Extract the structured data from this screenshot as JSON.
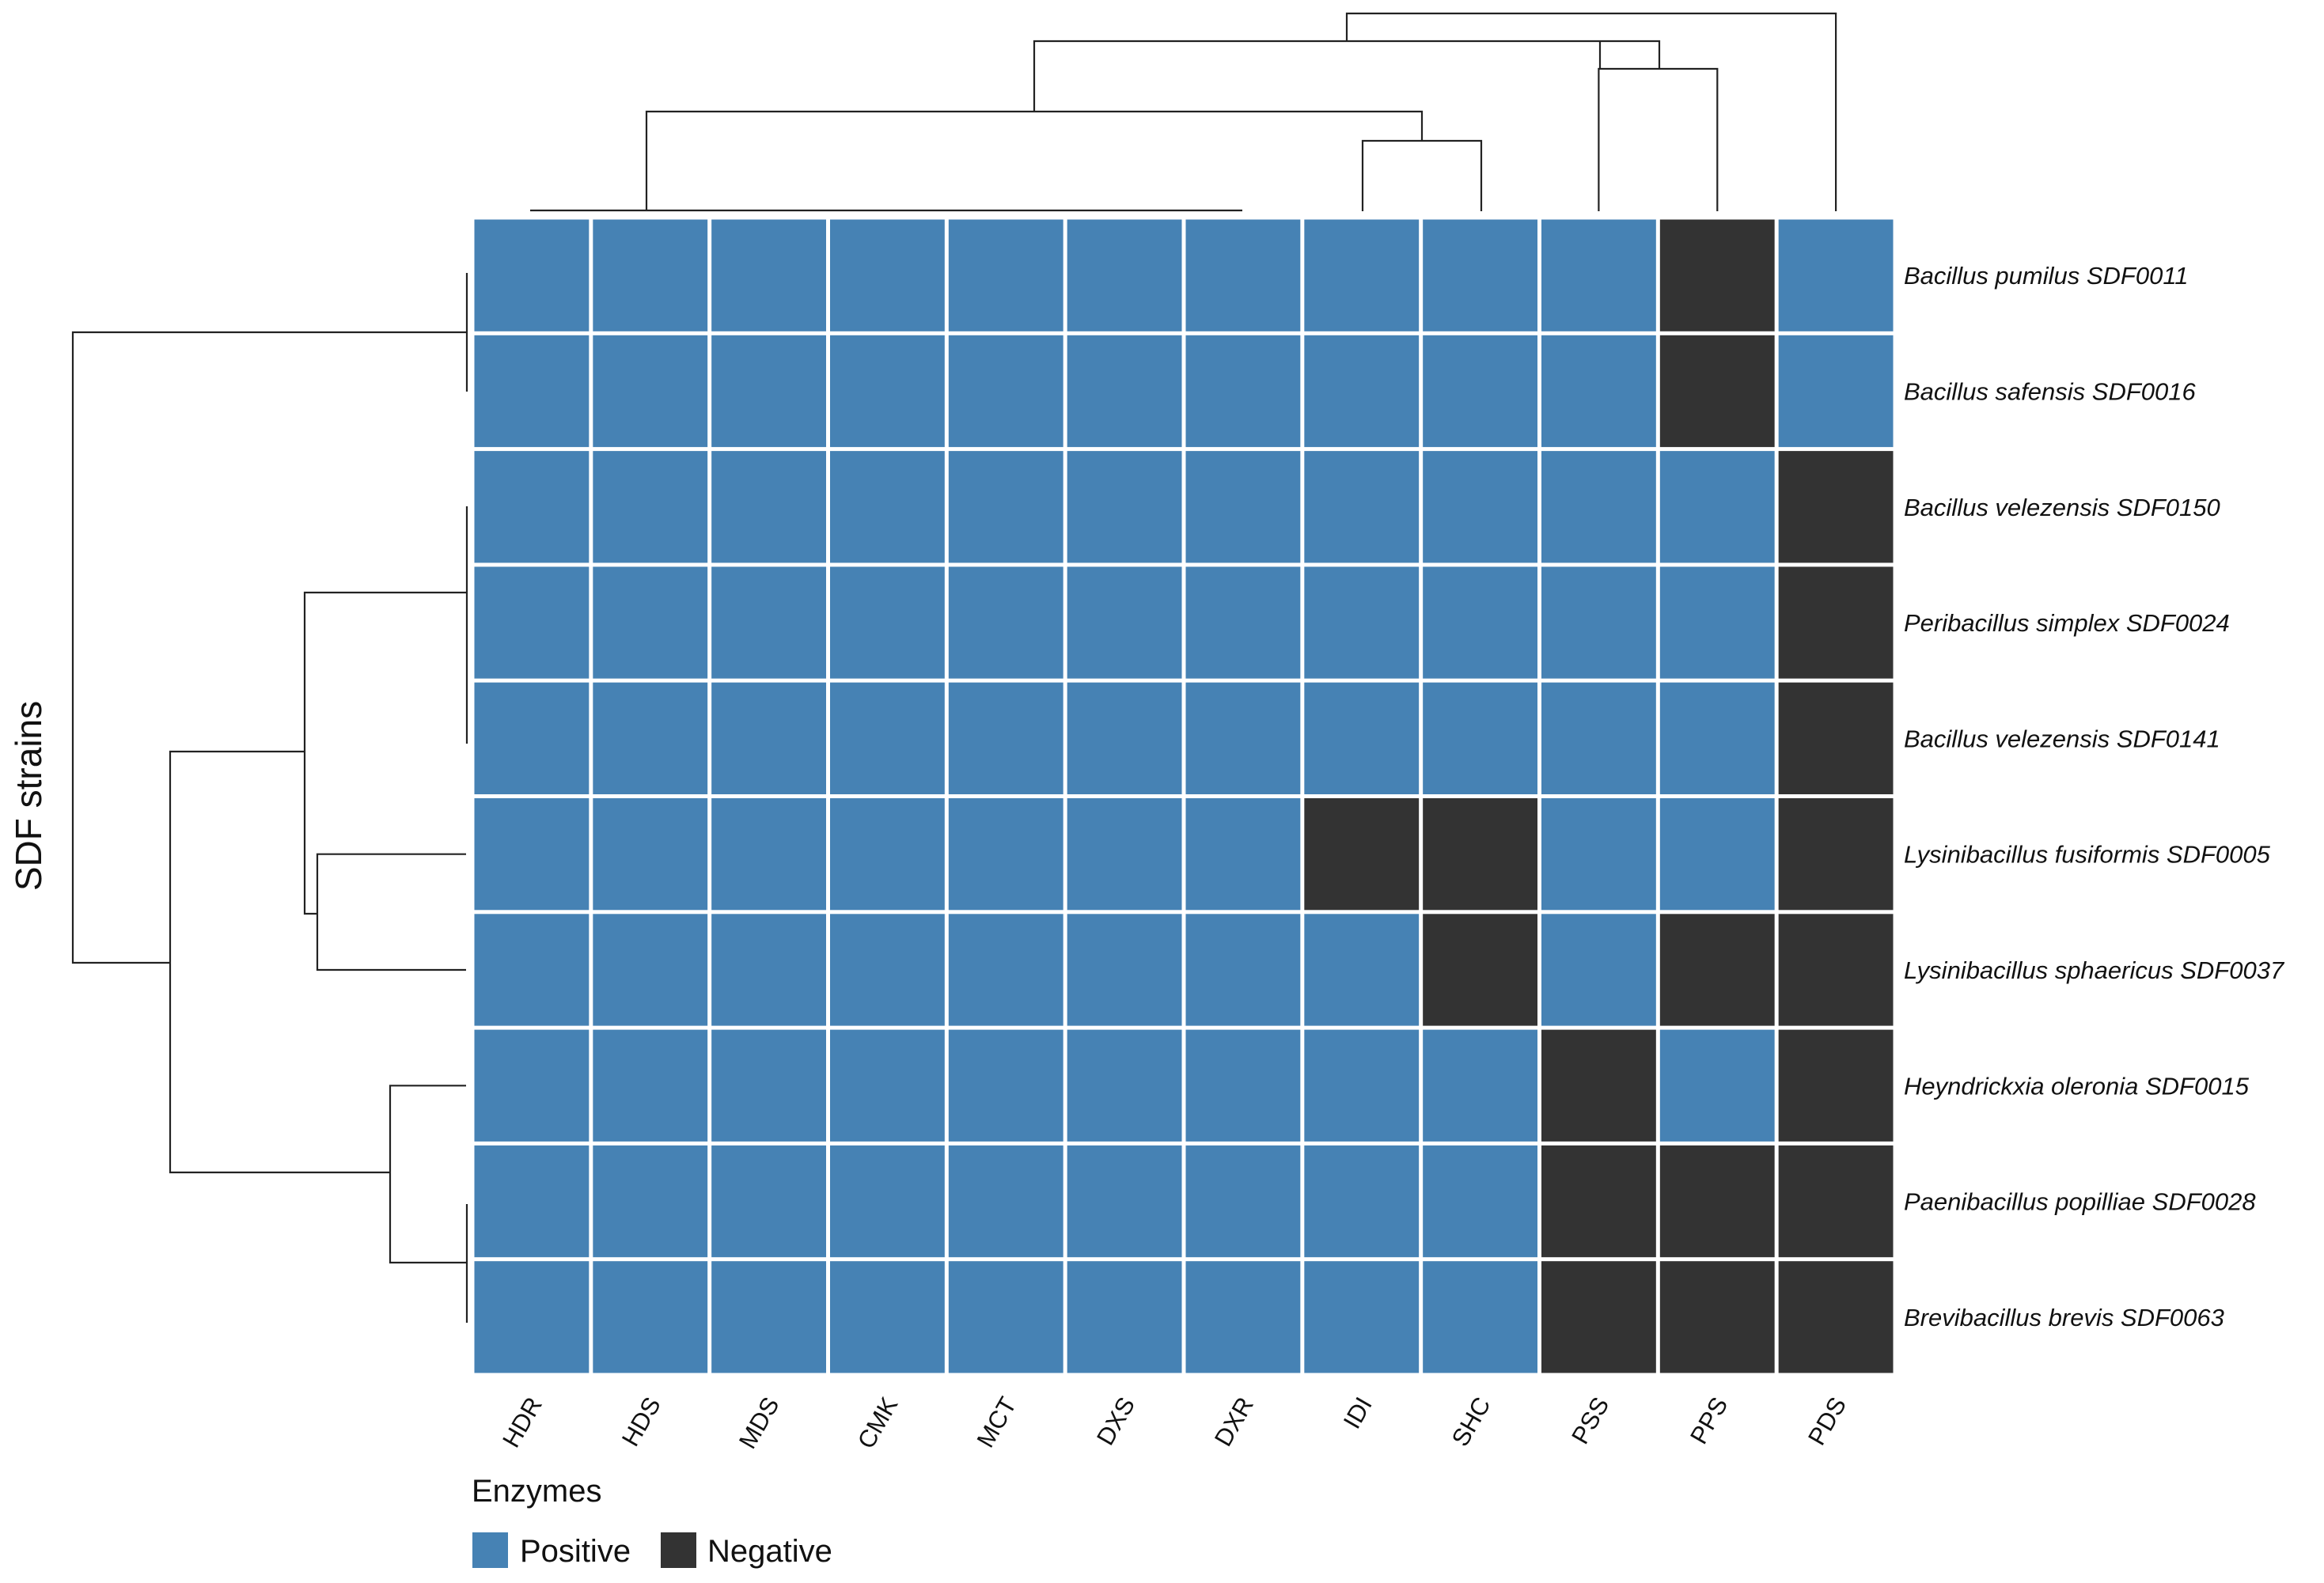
{
  "chart_data": {
    "type": "heatmap",
    "ylabel": "SDF strains",
    "columns": [
      "HDR",
      "HDS",
      "MDS",
      "CMK",
      "MCT",
      "DXS",
      "DXR",
      "IDI",
      "SHC",
      "PSS",
      "PPS",
      "PDS"
    ],
    "rows": [
      "Bacillus pumilus SDF0011",
      "Bacillus safensis SDF0016",
      "Bacillus velezensis SDF0150",
      "Peribacillus simplex SDF0024",
      "Bacillus velezensis SDF0141",
      "Lysinibacillus fusiformis SDF0005",
      "Lysinibacillus sphaericus SDF0037",
      "Heyndrickxia oleronia SDF0015",
      "Paenibacillus popilliae SDF0028",
      "Brevibacillus brevis SDF0063"
    ],
    "values": [
      [
        1,
        1,
        1,
        1,
        1,
        1,
        1,
        1,
        1,
        1,
        0,
        1
      ],
      [
        1,
        1,
        1,
        1,
        1,
        1,
        1,
        1,
        1,
        1,
        0,
        1
      ],
      [
        1,
        1,
        1,
        1,
        1,
        1,
        1,
        1,
        1,
        1,
        1,
        0
      ],
      [
        1,
        1,
        1,
        1,
        1,
        1,
        1,
        1,
        1,
        1,
        1,
        0
      ],
      [
        1,
        1,
        1,
        1,
        1,
        1,
        1,
        1,
        1,
        1,
        1,
        0
      ],
      [
        1,
        1,
        1,
        1,
        1,
        1,
        1,
        0,
        0,
        1,
        1,
        0
      ],
      [
        1,
        1,
        1,
        1,
        1,
        1,
        1,
        1,
        0,
        1,
        0,
        0
      ],
      [
        1,
        1,
        1,
        1,
        1,
        1,
        1,
        1,
        1,
        0,
        1,
        0
      ],
      [
        1,
        1,
        1,
        1,
        1,
        1,
        1,
        1,
        1,
        0,
        0,
        0
      ],
      [
        1,
        1,
        1,
        1,
        1,
        1,
        1,
        1,
        1,
        0,
        0,
        0
      ]
    ],
    "value_labels": {
      "1": "Positive",
      "0": "Negative"
    },
    "legend": {
      "title": "Enzymes",
      "position": "bottom-left",
      "items": [
        {
          "label": "Positive",
          "value": 1,
          "color": "#4682b4"
        },
        {
          "label": "Negative",
          "value": 0,
          "color": "#333333"
        }
      ]
    },
    "colors": {
      "positive": "#4682b4",
      "negative": "#333333",
      "grid": "#ffffff"
    },
    "column_dendrogram": true,
    "row_dendrogram": true
  }
}
